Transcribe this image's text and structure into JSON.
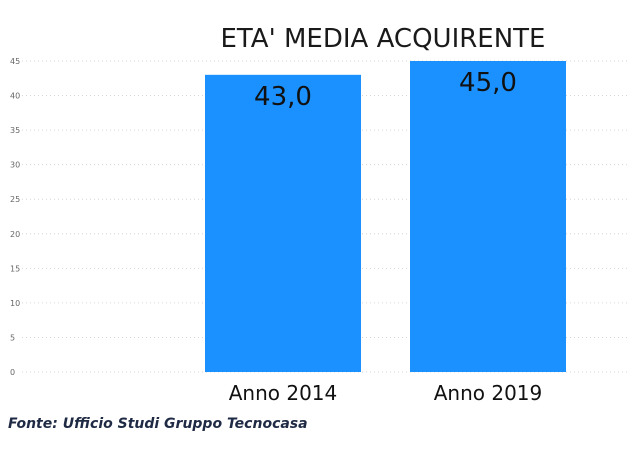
{
  "chart_data": {
    "type": "bar",
    "title": "ETA' MEDIA ACQUIRENTE",
    "categories": [
      "Anno 2014",
      "Anno 2019"
    ],
    "values": [
      43.0,
      45.0
    ],
    "data_labels": [
      "43,0",
      "45,0"
    ],
    "yticks": [
      "0",
      "5",
      "10",
      "15",
      "20",
      "25",
      "30",
      "35",
      "40",
      "45"
    ],
    "ylim": [
      0,
      45
    ],
    "xlabel": "",
    "ylabel": "",
    "grid": true,
    "bar_color": "#1a91ff"
  },
  "source": "Fonte: Ufficio Studi Gruppo Tecnocasa"
}
